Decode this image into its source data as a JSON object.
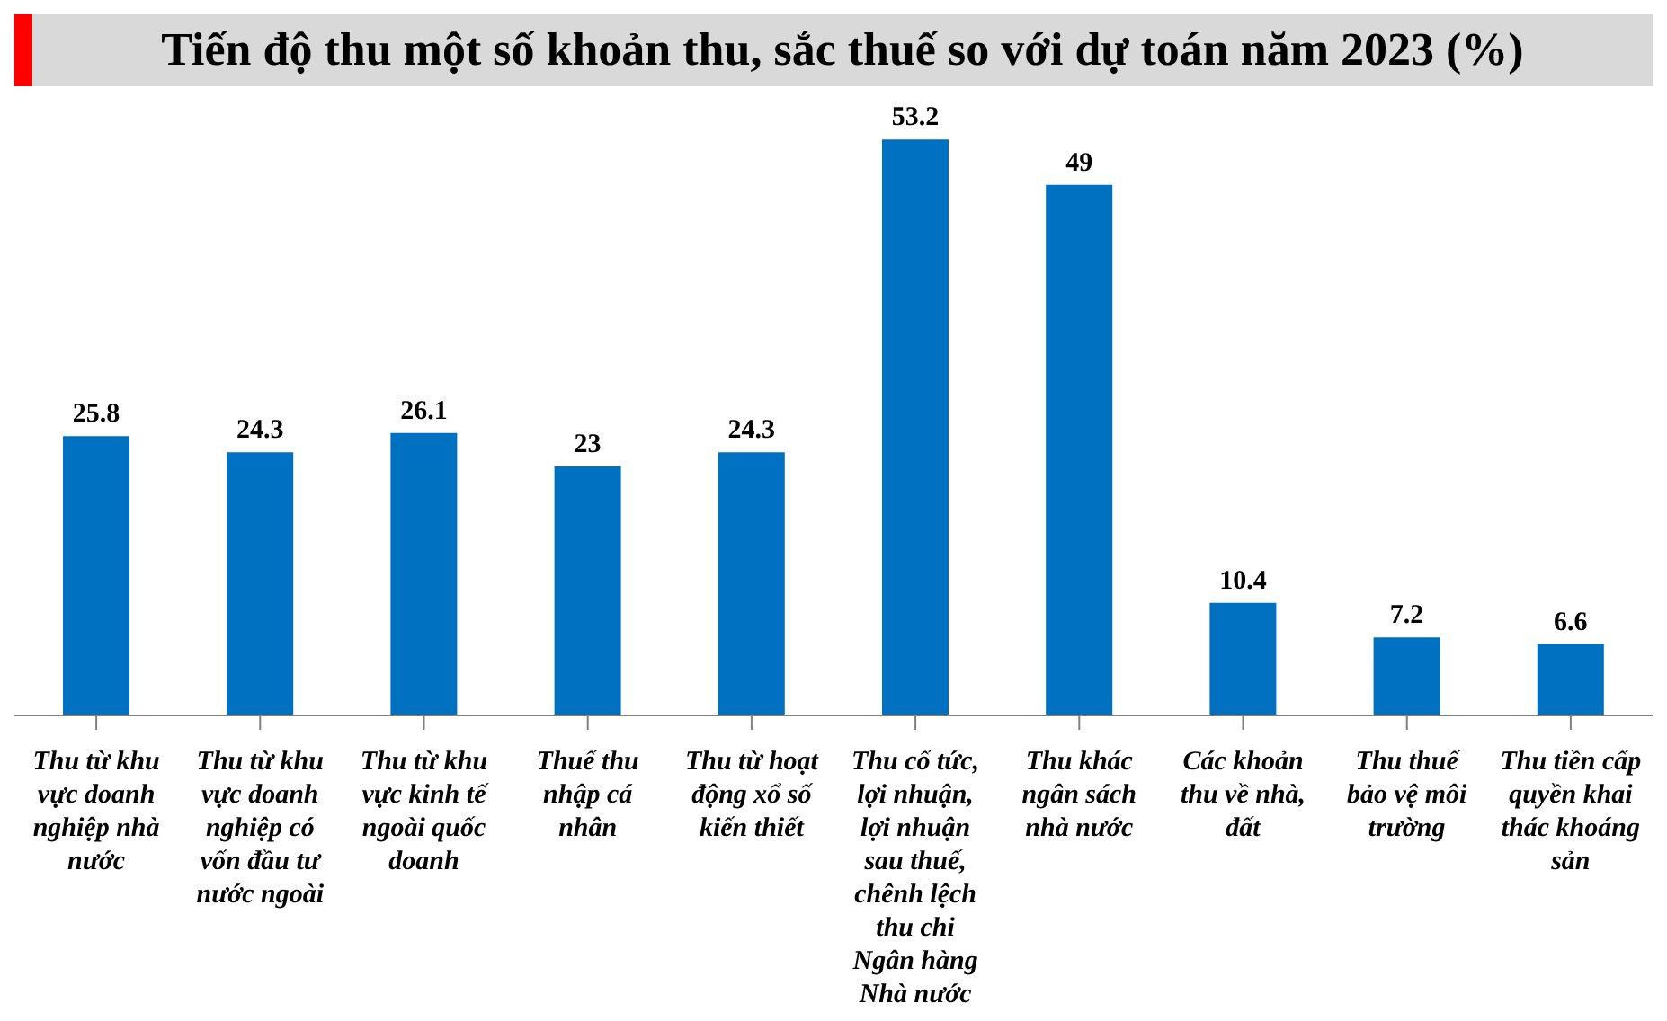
{
  "chart_data": {
    "type": "bar",
    "title": "Tiến độ thu một số khoản thu, sắc thuế so với dự toán năm 2023 (%)",
    "categories": [
      "Thu từ khu vực doanh nghiệp nhà nước",
      "Thu từ khu vực doanh nghiệp có vốn đầu tư nước ngoài",
      "Thu từ khu vực kinh tế ngoài quốc doanh",
      "Thuế thu nhập cá nhân",
      "Thu từ hoạt động xổ số kiến thiết",
      "Thu cổ tức, lợi nhuận, lợi nhuận sau thuế, chênh lệch thu chi Ngân hàng Nhà nước",
      "Thu khác ngân sách nhà nước",
      "Các khoản thu về nhà, đất",
      "Thu thuế bảo vệ môi trường",
      "Thu tiền cấp quyền khai thác khoáng sản"
    ],
    "values": [
      25.8,
      24.3,
      26.1,
      23,
      24.3,
      53.2,
      49,
      10.4,
      7.2,
      6.6
    ],
    "color": "#0070c0",
    "data_labels": true
  }
}
